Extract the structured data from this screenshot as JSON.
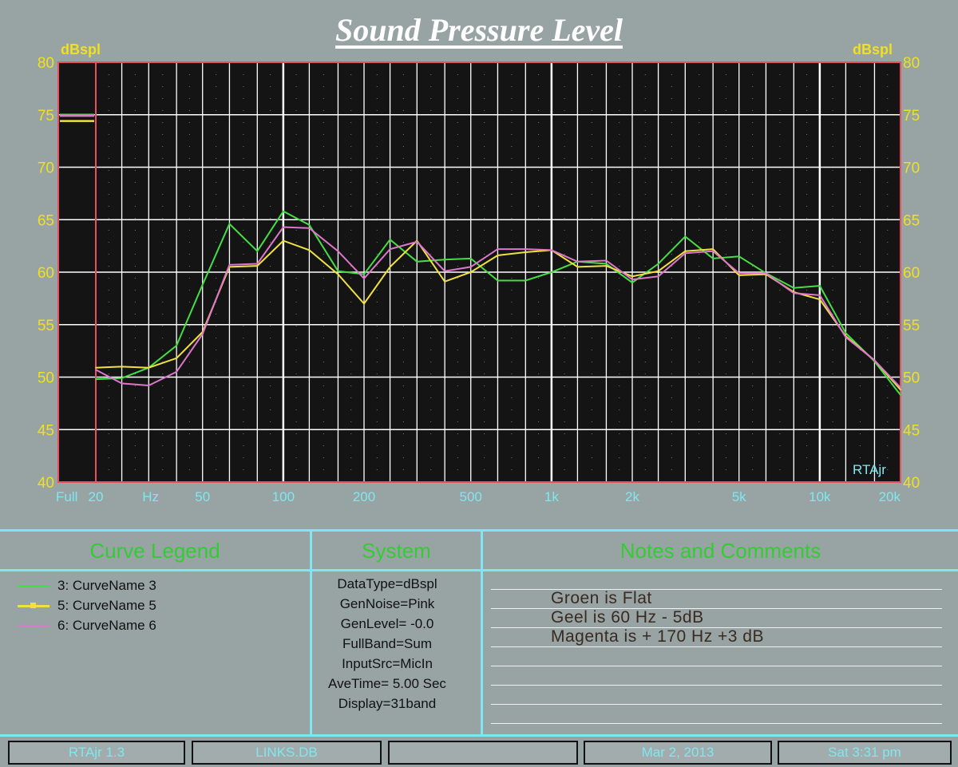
{
  "title": "Sound Pressure Level",
  "y_unit_left": "dBspl",
  "y_unit_right": "dBspl",
  "watermark": "RTAjr",
  "colors": {
    "background": "#98a3a4",
    "plot": "#141414",
    "grid": "#ffffff",
    "axis_text": "#f0e020",
    "x_text": "#7ee8f0",
    "frame": "#e85060"
  },
  "chart_data": {
    "type": "line",
    "title": "Sound Pressure Level",
    "ylabel": "dBspl",
    "xlabel": "",
    "x_scale": "log",
    "xlim": [
      20,
      20000
    ],
    "ylim": [
      40,
      80
    ],
    "grid": true,
    "y_ticks": [
      40,
      45,
      50,
      55,
      60,
      65,
      70,
      75,
      80
    ],
    "x_tick_labels": [
      {
        "label": "Full",
        "x": null
      },
      {
        "label": "20",
        "x": 20
      },
      {
        "label": "Hz",
        "x": 32
      },
      {
        "label": "50",
        "x": 50
      },
      {
        "label": "100",
        "x": 100
      },
      {
        "label": "200",
        "x": 200
      },
      {
        "label": "500",
        "x": 500
      },
      {
        "label": "1k",
        "x": 1000
      },
      {
        "label": "2k",
        "x": 2000
      },
      {
        "label": "5k",
        "x": 5000
      },
      {
        "label": "10k",
        "x": 10000
      },
      {
        "label": "20k",
        "x": 20000
      }
    ],
    "x": [
      20,
      25,
      31.5,
      40,
      50,
      63,
      80,
      100,
      125,
      160,
      200,
      250,
      315,
      400,
      500,
      630,
      800,
      1000,
      1250,
      1600,
      2000,
      2500,
      3150,
      4000,
      5000,
      6300,
      8000,
      10000,
      12500,
      16000,
      20000
    ],
    "series": [
      {
        "name": "3: CurveName 3",
        "color": "#44dd44",
        "full_band": 75.0,
        "values": [
          49.8,
          49.9,
          50.9,
          53.0,
          58.8,
          64.6,
          62.0,
          65.8,
          64.5,
          60.1,
          59.8,
          63.1,
          61.0,
          61.2,
          61.3,
          59.2,
          59.2,
          60.0,
          61.0,
          60.8,
          59.0,
          60.8,
          63.4,
          61.3,
          61.5,
          59.9,
          58.5,
          58.7,
          54.2,
          51.5,
          48.3
        ]
      },
      {
        "name": "5: CurveName 5",
        "color": "#f0e040",
        "full_band": 74.4,
        "values": [
          50.9,
          51.0,
          50.9,
          51.8,
          54.3,
          60.5,
          60.6,
          63.0,
          62.1,
          59.8,
          57.0,
          60.5,
          63.0,
          59.1,
          60.0,
          61.6,
          61.9,
          62.1,
          60.5,
          60.6,
          59.6,
          60.1,
          62.0,
          62.2,
          59.7,
          59.8,
          58.1,
          57.4,
          53.9,
          51.6,
          48.8
        ]
      },
      {
        "name": "6: CurveName 6",
        "color": "#dd77cc",
        "full_band": 74.9,
        "values": [
          50.7,
          49.4,
          49.2,
          50.5,
          54.1,
          60.7,
          60.8,
          64.3,
          64.2,
          62.0,
          59.4,
          62.2,
          62.9,
          60.1,
          60.5,
          62.2,
          62.2,
          62.1,
          61.0,
          61.1,
          59.3,
          59.6,
          61.8,
          62.0,
          59.9,
          59.9,
          58.0,
          57.8,
          53.8,
          51.6,
          49.0
        ]
      }
    ]
  },
  "panels": {
    "legend_title": "Curve Legend",
    "system_title": "System",
    "notes_title": "Notes and Comments",
    "legend": [
      {
        "label": "3: CurveName 3",
        "color": "#44dd44",
        "marker": false
      },
      {
        "label": "5: CurveName 5",
        "color": "#f0e040",
        "marker": true
      },
      {
        "label": "6: CurveName 6",
        "color": "#dd77cc",
        "marker": false
      }
    ],
    "system": [
      "DataType=dBspl",
      "GenNoise=Pink",
      "GenLevel=  -0.0",
      "FullBand=Sum",
      "InputSrc=MicIn",
      "AveTime= 5.00 Sec",
      "Display=31band"
    ],
    "notes": [
      "Groen is Flat",
      "Geel is 60 Hz - 5dB",
      "Magenta is + 170 Hz +3 dB"
    ]
  },
  "status_bar": {
    "app": "RTAjr 1.3",
    "file": "LINKS.DB",
    "blank": "",
    "date": "Mar 2, 2013",
    "time": "Sat  3:31 pm"
  }
}
